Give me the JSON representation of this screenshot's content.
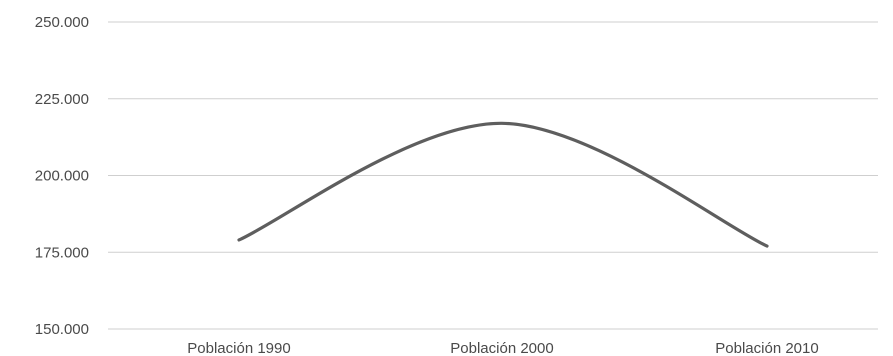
{
  "chart_data": {
    "type": "line",
    "categories": [
      "Población 1990",
      "Población 2000",
      "Población 2010"
    ],
    "series": [
      {
        "values": [
          179000,
          217000,
          177000
        ]
      }
    ],
    "y_ticks": [
      "150.000",
      "175.000",
      "200.000",
      "225.000",
      "250.000"
    ],
    "ylim": [
      150000,
      250000
    ],
    "grid": true,
    "smooth": true,
    "line_color": "#5e5e5e",
    "grid_color": "#cfcfcf",
    "label_color": "#4a4a4a"
  }
}
